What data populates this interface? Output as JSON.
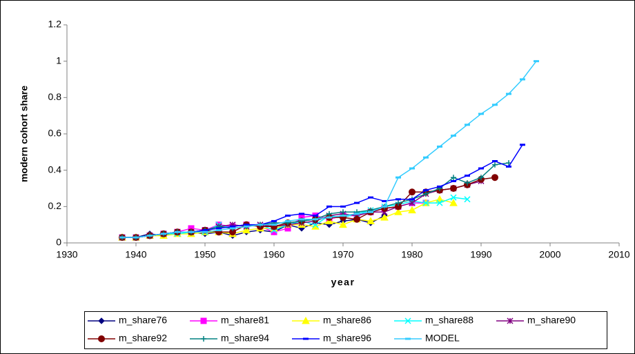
{
  "chart_data": {
    "type": "line",
    "x_label": "year",
    "y_label": "modern cohort share",
    "xlim": [
      1930,
      2010
    ],
    "xticks": [
      1930,
      1940,
      1950,
      1960,
      1970,
      1980,
      1990,
      2000,
      2010
    ],
    "ylim": [
      0,
      1.2
    ],
    "yticks": [
      0,
      0.2,
      0.4,
      0.6,
      0.8,
      1,
      1.2
    ],
    "grid": false,
    "legend": "bottom",
    "series": [
      {
        "name": "m_share76",
        "color": "#000080",
        "marker": "diamond",
        "x": [
          1938,
          1940,
          1942,
          1944,
          1946,
          1948,
          1950,
          1952,
          1954,
          1956,
          1958,
          1960,
          1962,
          1964,
          1966,
          1968,
          1970,
          1972,
          1974,
          1976
        ],
        "values": [
          0.03,
          0.03,
          0.05,
          0.04,
          0.06,
          0.06,
          0.05,
          0.06,
          0.04,
          0.06,
          0.07,
          0.06,
          0.1,
          0.08,
          0.11,
          0.1,
          0.12,
          0.13,
          0.11,
          0.15
        ]
      },
      {
        "name": "m_share81",
        "color": "#ff00ff",
        "marker": "square",
        "x": [
          1938,
          1940,
          1942,
          1944,
          1946,
          1948,
          1950,
          1952,
          1954,
          1956,
          1958,
          1960,
          1962,
          1964,
          1966,
          1968,
          1970,
          1972,
          1974,
          1976,
          1978,
          1980,
          1982
        ],
        "values": [
          0.03,
          0.03,
          0.04,
          0.05,
          0.06,
          0.08,
          0.07,
          0.1,
          0.09,
          0.1,
          0.09,
          0.06,
          0.08,
          0.14,
          0.15,
          0.13,
          0.15,
          0.15,
          0.17,
          0.19,
          0.2,
          0.22,
          0.22
        ]
      },
      {
        "name": "m_share86",
        "color": "#ffff00",
        "marker": "triangle",
        "x": [
          1938,
          1940,
          1942,
          1944,
          1946,
          1948,
          1950,
          1952,
          1954,
          1956,
          1958,
          1960,
          1962,
          1964,
          1966,
          1968,
          1970,
          1972,
          1974,
          1976,
          1978,
          1980,
          1982,
          1984,
          1986
        ],
        "values": [
          0.03,
          0.03,
          0.04,
          0.04,
          0.05,
          0.05,
          0.06,
          0.06,
          0.05,
          0.07,
          0.08,
          0.08,
          0.1,
          0.1,
          0.09,
          0.12,
          0.1,
          0.13,
          0.12,
          0.14,
          0.17,
          0.18,
          0.22,
          0.24,
          0.22
        ]
      },
      {
        "name": "m_share88",
        "color": "#00ffff",
        "marker": "x",
        "x": [
          1938,
          1940,
          1942,
          1944,
          1946,
          1948,
          1950,
          1952,
          1954,
          1956,
          1958,
          1960,
          1962,
          1964,
          1966,
          1968,
          1970,
          1972,
          1974,
          1976,
          1978,
          1980,
          1982,
          1984,
          1986,
          1988
        ],
        "values": [
          0.03,
          0.03,
          0.04,
          0.05,
          0.05,
          0.06,
          0.06,
          0.1,
          0.08,
          0.09,
          0.1,
          0.07,
          0.1,
          0.12,
          0.1,
          0.15,
          0.14,
          0.16,
          0.18,
          0.2,
          0.21,
          0.23,
          0.22,
          0.22,
          0.25,
          0.24
        ]
      },
      {
        "name": "m_share90",
        "color": "#800080",
        "marker": "star",
        "x": [
          1938,
          1940,
          1942,
          1944,
          1946,
          1948,
          1950,
          1952,
          1954,
          1956,
          1958,
          1960,
          1962,
          1964,
          1966,
          1968,
          1970,
          1972,
          1974,
          1976,
          1978,
          1980,
          1982,
          1984,
          1986,
          1988,
          1990
        ],
        "values": [
          0.03,
          0.03,
          0.04,
          0.05,
          0.06,
          0.06,
          0.07,
          0.09,
          0.1,
          0.09,
          0.1,
          0.09,
          0.1,
          0.11,
          0.12,
          0.15,
          0.16,
          0.15,
          0.17,
          0.17,
          0.2,
          0.22,
          0.27,
          0.29,
          0.3,
          0.32,
          0.34
        ]
      },
      {
        "name": "m_share92",
        "color": "#800000",
        "marker": "circle",
        "x": [
          1938,
          1940,
          1942,
          1944,
          1946,
          1948,
          1950,
          1952,
          1954,
          1956,
          1958,
          1960,
          1962,
          1964,
          1966,
          1968,
          1970,
          1972,
          1974,
          1976,
          1978,
          1980,
          1982,
          1984,
          1986,
          1988,
          1990,
          1992
        ],
        "values": [
          0.03,
          0.03,
          0.04,
          0.05,
          0.06,
          0.06,
          0.07,
          0.06,
          0.06,
          0.1,
          0.09,
          0.09,
          0.11,
          0.12,
          0.13,
          0.14,
          0.14,
          0.13,
          0.17,
          0.19,
          0.2,
          0.28,
          0.28,
          0.29,
          0.3,
          0.32,
          0.35,
          0.36
        ]
      },
      {
        "name": "m_share94",
        "color": "#008080",
        "marker": "plus",
        "x": [
          1938,
          1940,
          1942,
          1944,
          1946,
          1948,
          1950,
          1952,
          1954,
          1956,
          1958,
          1960,
          1962,
          1964,
          1966,
          1968,
          1970,
          1972,
          1974,
          1976,
          1978,
          1980,
          1982,
          1984,
          1986,
          1988,
          1990,
          1992,
          1994
        ],
        "values": [
          0.03,
          0.03,
          0.04,
          0.05,
          0.06,
          0.06,
          0.07,
          0.09,
          0.08,
          0.09,
          0.1,
          0.11,
          0.11,
          0.12,
          0.13,
          0.16,
          0.17,
          0.17,
          0.18,
          0.2,
          0.22,
          0.24,
          0.27,
          0.3,
          0.36,
          0.33,
          0.36,
          0.43,
          0.44
        ]
      },
      {
        "name": "m_share96",
        "color": "#0000ff",
        "marker": "dash",
        "x": [
          1938,
          1940,
          1942,
          1944,
          1946,
          1948,
          1950,
          1952,
          1954,
          1956,
          1958,
          1960,
          1962,
          1964,
          1966,
          1968,
          1970,
          1972,
          1974,
          1976,
          1978,
          1980,
          1982,
          1984,
          1986,
          1988,
          1990,
          1992,
          1994,
          1996
        ],
        "values": [
          0.03,
          0.03,
          0.04,
          0.05,
          0.06,
          0.06,
          0.07,
          0.08,
          0.09,
          0.1,
          0.1,
          0.12,
          0.15,
          0.16,
          0.15,
          0.2,
          0.2,
          0.22,
          0.25,
          0.23,
          0.24,
          0.24,
          0.29,
          0.31,
          0.34,
          0.37,
          0.41,
          0.45,
          0.42,
          0.54
        ]
      },
      {
        "name": "MODEL",
        "color": "#33ccff",
        "marker": "dash",
        "x": [
          1938,
          1940,
          1942,
          1944,
          1946,
          1948,
          1950,
          1952,
          1954,
          1956,
          1958,
          1960,
          1962,
          1964,
          1966,
          1968,
          1970,
          1972,
          1974,
          1976,
          1978,
          1980,
          1982,
          1984,
          1986,
          1988,
          1990,
          1992,
          1994,
          1996,
          1998
        ],
        "values": [
          0.03,
          0.03,
          0.04,
          0.05,
          0.06,
          0.06,
          0.06,
          0.07,
          0.08,
          0.09,
          0.1,
          0.1,
          0.12,
          0.13,
          0.13,
          0.14,
          0.15,
          0.16,
          0.17,
          0.2,
          0.36,
          0.41,
          0.47,
          0.53,
          0.59,
          0.65,
          0.71,
          0.76,
          0.82,
          0.9,
          1.0
        ]
      }
    ]
  }
}
